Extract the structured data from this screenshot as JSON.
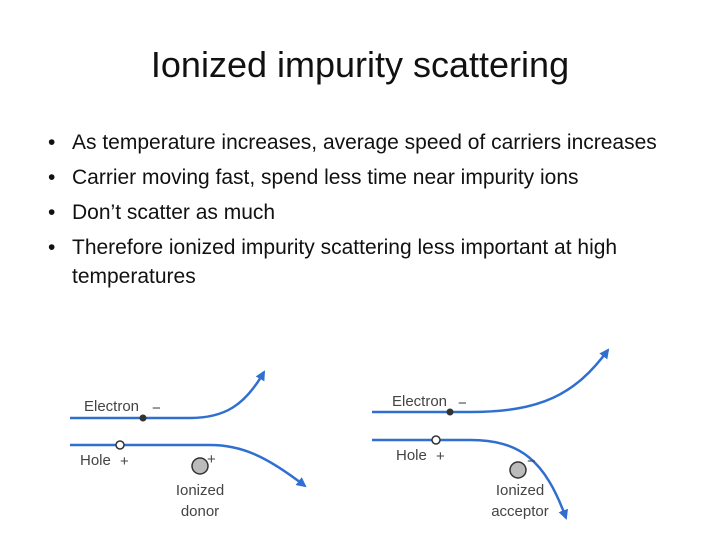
{
  "title": "Ionized impurity scattering",
  "bullets": [
    "As temperature increases, average speed of carriers increases",
    "Carrier moving fast, spend less time near impurity ions",
    "Don’t scatter as much",
    "Therefore ionized impurity scattering less important at high temperatures"
  ],
  "diagrams": [
    {
      "electron_label": "Electron",
      "electron_sign": "−",
      "hole_label": "Hole",
      "hole_sign": "+",
      "ion_sign": "+",
      "ion_label": [
        "Ionized",
        "donor"
      ]
    },
    {
      "electron_label": "Electron",
      "electron_sign": "−",
      "hole_label": "Hole",
      "hole_sign": "+",
      "ion_sign": "−",
      "ion_label": [
        "Ionized",
        "acceptor"
      ]
    }
  ]
}
